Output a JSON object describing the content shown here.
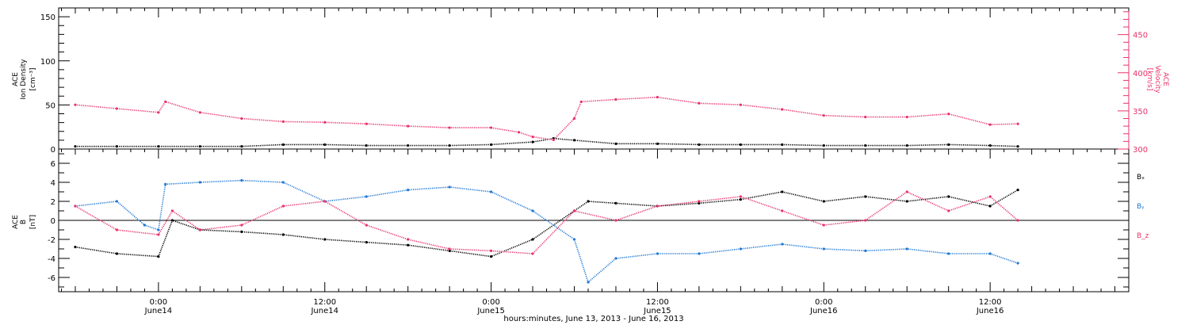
{
  "chart_data": [
    {
      "type": "scatter",
      "panel": "ion-density-velocity",
      "ylabel_left": [
        "ACE",
        "Ion Density",
        "[cm⁻³]"
      ],
      "ylabel_right": [
        "ACE",
        "Velocity",
        "[km/s]"
      ],
      "ylim_left": [
        0,
        160
      ],
      "yticks_left": [
        "0",
        "50",
        "100",
        "150"
      ],
      "ylim_right": [
        300,
        485
      ],
      "yticks_right": [
        "300",
        "350",
        "400",
        "450"
      ],
      "right_axis_color": "#e8336a",
      "grid": false,
      "series": [
        {
          "axis": "left",
          "color": "#000000",
          "x": [
            -6,
            -3,
            0,
            3,
            6,
            9,
            12,
            15,
            18,
            21,
            24,
            27,
            28.5,
            30,
            33,
            36,
            39,
            42,
            45,
            48,
            51,
            54,
            57,
            60,
            62
          ],
          "y": [
            3,
            3,
            3,
            3,
            3,
            5,
            5,
            4,
            4,
            4,
            5,
            8,
            12,
            10,
            6,
            6,
            5,
            5,
            5,
            4,
            4,
            4,
            5,
            4,
            3
          ]
        },
        {
          "axis": "right",
          "color": "#e8336a",
          "x": [
            -6,
            -3,
            0,
            0.5,
            3,
            6,
            9,
            12,
            15,
            18,
            21,
            24,
            26,
            27,
            28.5,
            30,
            30.5,
            33,
            36,
            39,
            42,
            45,
            48,
            51,
            54,
            57,
            60,
            62
          ],
          "y": [
            358,
            353,
            348,
            362,
            348,
            340,
            336,
            335,
            333,
            330,
            328,
            328,
            322,
            316,
            312,
            340,
            362,
            365,
            368,
            360,
            358,
            352,
            344,
            342,
            342,
            346,
            332,
            333
          ]
        }
      ]
    },
    {
      "type": "scatter",
      "panel": "magnetic-field",
      "ylabel": [
        "ACE",
        "B",
        "[nT]"
      ],
      "ylim": [
        -7.5,
        7.5
      ],
      "yticks": [
        "-6",
        "-4",
        "-2",
        "0",
        "2",
        "4",
        "6"
      ],
      "zero_line": true,
      "grid": false,
      "legend": [
        {
          "text": "Bₓ",
          "color": "#000000"
        },
        {
          "text": "Bᵧ",
          "color": "#1f78d4"
        },
        {
          "text": "B_z",
          "color": "#e8336a"
        }
      ],
      "series": [
        {
          "name": "Bₓ",
          "color": "#000000",
          "x": [
            -6,
            -3,
            0,
            1,
            3,
            6,
            9,
            12,
            15,
            18,
            21,
            24,
            27,
            30,
            31,
            33,
            36,
            39,
            42,
            45,
            48,
            51,
            54,
            57,
            60,
            62
          ],
          "y": [
            -2.8,
            -3.5,
            -3.8,
            0,
            -1,
            -1.2,
            -1.5,
            -2.0,
            -2.3,
            -2.6,
            -3.2,
            -3.8,
            -2,
            1,
            2,
            1.8,
            1.5,
            1.8,
            2.2,
            3,
            2,
            2.5,
            2,
            2.5,
            1.5,
            3.2
          ]
        },
        {
          "name": "Bᵧ",
          "color": "#1f78d4",
          "x": [
            -6,
            -3,
            -1,
            0,
            0.5,
            3,
            6,
            9,
            12,
            15,
            18,
            21,
            24,
            27,
            30,
            31,
            33,
            36,
            39,
            42,
            45,
            48,
            51,
            54,
            57,
            60,
            62
          ],
          "y": [
            1.5,
            2,
            -0.5,
            -1,
            3.8,
            4,
            4.2,
            4,
            2,
            2.5,
            3.2,
            3.5,
            3,
            1,
            -2,
            -6.5,
            -4,
            -3.5,
            -3.5,
            -3,
            -2.5,
            -3,
            -3.2,
            -3,
            -3.5,
            -3.5,
            -4.5
          ]
        },
        {
          "name": "B_z",
          "color": "#e8336a",
          "x": [
            -6,
            -3,
            0,
            1,
            3,
            6,
            9,
            12,
            15,
            18,
            21,
            24,
            27,
            30,
            33,
            36,
            39,
            42,
            45,
            48,
            51,
            54,
            57,
            60,
            62
          ],
          "y": [
            1.5,
            -1,
            -1.5,
            1,
            -1,
            -0.5,
            1.5,
            2,
            -0.5,
            -2,
            -3,
            -3.2,
            -3.5,
            1,
            0,
            1.5,
            2,
            2.5,
            1,
            -0.5,
            0,
            3,
            1,
            2.5,
            0
          ]
        }
      ]
    }
  ],
  "xaxis": {
    "range_hours": [
      -7.2,
      70
    ],
    "tick_labels": [
      {
        "t": 0,
        "time": "0:00",
        "date": "June14"
      },
      {
        "t": 12,
        "time": "12:00",
        "date": "June14"
      },
      {
        "t": 24,
        "time": "0:00",
        "date": "June15"
      },
      {
        "t": 36,
        "time": "12:00",
        "date": "June15"
      },
      {
        "t": 48,
        "time": "0:00",
        "date": "June16"
      },
      {
        "t": 60,
        "time": "12:00",
        "date": "June16"
      }
    ],
    "title": "hours:minutes, June 13, 2013 - June 16, 2013"
  }
}
